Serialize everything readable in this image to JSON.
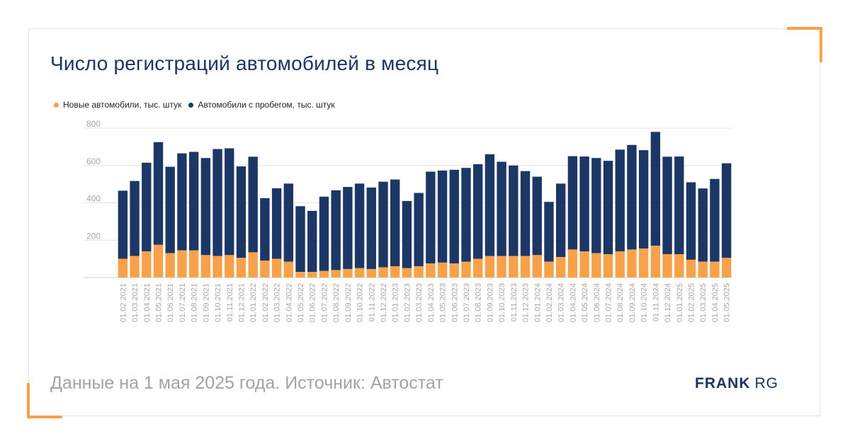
{
  "title": "Число регистраций автомобилей в месяц",
  "footer": "Данные на 1 мая 2025 года. Источник: Автостат",
  "brand": {
    "part1": "FRANK",
    "part2": "RG"
  },
  "colors": {
    "new": "#f7a24b",
    "used": "#1c3766",
    "accent": "#f7a24b",
    "title": "#1d3461"
  },
  "chart_data": {
    "type": "bar",
    "stacked": true,
    "ylim": [
      0,
      800
    ],
    "yticks": [
      200,
      400,
      600,
      800
    ],
    "grid": true,
    "legend_position": "top-left",
    "categories": [
      "01.02.2021",
      "01.03.2021",
      "01.04.2021",
      "01.05.2021",
      "01.06.2021",
      "01.07.2021",
      "01.08.2021",
      "01.09.2021",
      "01.10.2021",
      "01.11.2021",
      "01.12.2021",
      "01.01.2022",
      "01.02.2022",
      "01.03.2022",
      "01.04.2022",
      "01.05.2022",
      "01.06.2022",
      "01.07.2022",
      "01.08.2022",
      "01.09.2022",
      "01.10.2022",
      "01.11.2022",
      "01.12.2022",
      "01.01.2023",
      "01.02.2023",
      "01.03.2023",
      "01.04.2023",
      "01.05.2023",
      "01.06.2023",
      "01.07.2023",
      "01.08.2023",
      "01.09.2023",
      "01.10.2023",
      "01.11.2023",
      "01.12.2023",
      "01.01.2024",
      "01.02.2024",
      "01.03.2024",
      "01.04.2024",
      "01.05.2024",
      "01.06.2024",
      "01.07.2024",
      "01.08.2024",
      "01.09.2024",
      "01.10.2024",
      "01.11.2024",
      "01.12.2024",
      "01.01.2025",
      "01.02.2025",
      "01.03.2025",
      "01.04.2025",
      "01.05.2025"
    ],
    "series": [
      {
        "name": "Новые автомобили, тыс. штук",
        "values": [
          100,
          115,
          140,
          175,
          130,
          145,
          145,
          120,
          115,
          120,
          105,
          135,
          90,
          100,
          85,
          30,
          30,
          35,
          40,
          45,
          50,
          45,
          55,
          60,
          50,
          60,
          75,
          80,
          75,
          85,
          100,
          115,
          115,
          115,
          115,
          120,
          85,
          110,
          150,
          140,
          130,
          125,
          140,
          150,
          155,
          170,
          125,
          125,
          95,
          85,
          85,
          105
        ]
      },
      {
        "name": "Автомобили с пробегом, тыс. штук",
        "values": [
          365,
          402,
          475,
          550,
          463,
          520,
          528,
          520,
          573,
          572,
          490,
          512,
          335,
          378,
          418,
          352,
          327,
          398,
          427,
          440,
          453,
          437,
          458,
          465,
          360,
          393,
          492,
          493,
          502,
          502,
          507,
          545,
          505,
          485,
          455,
          420,
          320,
          393,
          500,
          508,
          510,
          500,
          545,
          560,
          527,
          610,
          522,
          523,
          415,
          392,
          443,
          507
        ]
      }
    ]
  }
}
